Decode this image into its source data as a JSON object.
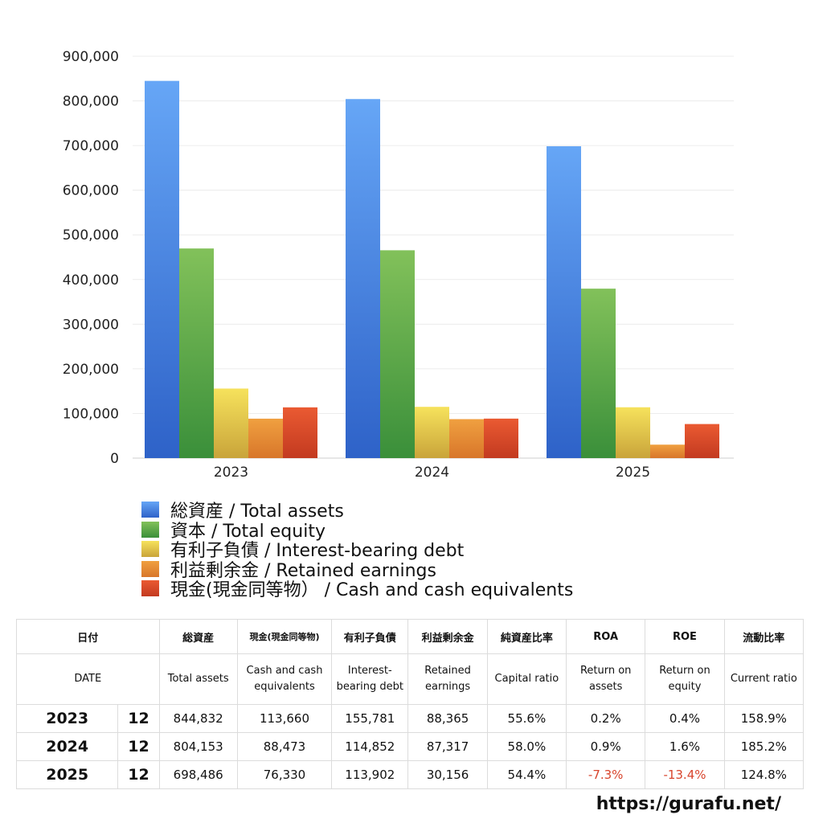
{
  "chart_data": {
    "type": "bar",
    "categories": [
      "2023",
      "2024",
      "2025"
    ],
    "ylim": [
      0,
      900000
    ],
    "yticks": [
      "0",
      "100,000",
      "200,000",
      "300,000",
      "400,000",
      "500,000",
      "600,000",
      "700,000",
      "800,000",
      "900,000"
    ],
    "grid": true,
    "legend_position": "bottom-left",
    "series": [
      {
        "name": "総資産 / Total assets",
        "values": [
          844832,
          804153,
          698486
        ],
        "color_top": "#66a6f6",
        "color_bottom": "#2e62c8"
      },
      {
        "name": "資本 / Total equity",
        "values": [
          469500,
          465500,
          379500
        ],
        "color_top": "#82c15a",
        "color_bottom": "#3a8f3a"
      },
      {
        "name": "有利子負債 / Interest-bearing debt",
        "values": [
          155781,
          114852,
          113902
        ],
        "color_top": "#f6e25c",
        "color_bottom": "#c9a43a"
      },
      {
        "name": "利益剰余金 / Retained earnings",
        "values": [
          88365,
          87317,
          30156
        ],
        "color_top": "#f0a040",
        "color_bottom": "#d8762a"
      },
      {
        "name": "現金(現金同等物）  /  Cash and cash equivalents",
        "values": [
          113660,
          88473,
          76330
        ],
        "color_top": "#ea5a32",
        "color_bottom": "#c33a20"
      }
    ]
  },
  "table": {
    "header_ja": {
      "date": "日付",
      "total_assets": "総資産",
      "cash": "現金(現金同等物)",
      "debt": "有利子負債",
      "retained": "利益剰余金",
      "capital_ratio": "純資産比率",
      "roa": "ROA",
      "roe": "ROE",
      "current_ratio": "流動比率"
    },
    "header_en": {
      "date": "DATE",
      "total_assets": "Total assets",
      "cash": "Cash and cash equivalents",
      "debt": "Interest-bearing debt",
      "retained": "Retained earnings",
      "capital_ratio": "Capital ratio",
      "roa": "Return on assets",
      "roe": "Return on equity",
      "current_ratio": "Current ratio"
    },
    "rows": [
      {
        "year": "2023",
        "month": "12",
        "total_assets": "844,832",
        "cash": "113,660",
        "debt": "155,781",
        "retained": "88,365",
        "capital_ratio": "55.6%",
        "roa": "0.2%",
        "roe": "0.4%",
        "current_ratio": "158.9%"
      },
      {
        "year": "2024",
        "month": "12",
        "total_assets": "804,153",
        "cash": "88,473",
        "debt": "114,852",
        "retained": "87,317",
        "capital_ratio": "58.0%",
        "roa": "0.9%",
        "roe": "1.6%",
        "current_ratio": "185.2%"
      },
      {
        "year": "2025",
        "month": "12",
        "total_assets": "698,486",
        "cash": "76,330",
        "debt": "113,902",
        "retained": "30,156",
        "capital_ratio": "54.4%",
        "roa": "-7.3%",
        "roe": "-13.4%",
        "current_ratio": "124.8%"
      }
    ],
    "negative_color": "#d8442c"
  },
  "site_url": "https://gurafu.net/"
}
